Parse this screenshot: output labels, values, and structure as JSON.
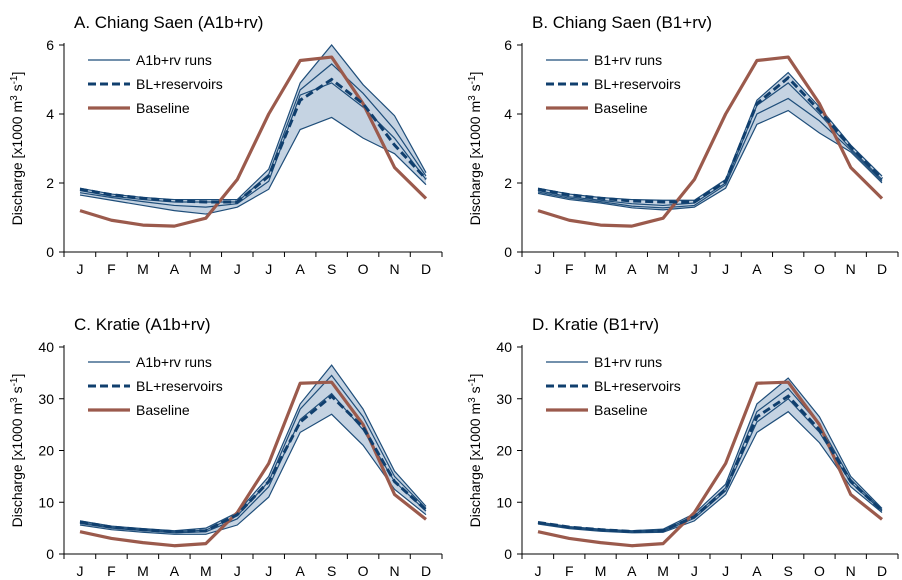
{
  "colors": {
    "baseline": "#9b5a4c",
    "runs": "#1f4e7a",
    "reservoirs": "#103f6e",
    "band": "#c5d3e2"
  },
  "chart_data": [
    {
      "type": "line",
      "title": "A. Chiang Saen (A1b+rv)",
      "ylabel_prefix": "Discharge [x1000 m",
      "ylabel_sup1": "3",
      "ylabel_mid": " s",
      "ylabel_sup2": "-1",
      "ylabel_suffix": "]",
      "categories": [
        "J",
        "F",
        "M",
        "A",
        "M",
        "J",
        "J",
        "A",
        "S",
        "O",
        "N",
        "D"
      ],
      "ylim": [
        0,
        6
      ],
      "yticks": [
        0,
        2,
        4,
        6
      ],
      "legend": {
        "runs": "A1b+rv runs",
        "reservoirs": "BL+reservoirs",
        "baseline": "Baseline"
      },
      "band": {
        "upper": [
          1.85,
          1.68,
          1.58,
          1.52,
          1.52,
          1.52,
          2.4,
          4.9,
          6.0,
          4.85,
          3.95,
          2.3
        ],
        "lower": [
          1.65,
          1.5,
          1.35,
          1.2,
          1.1,
          1.3,
          1.82,
          3.55,
          3.9,
          3.3,
          2.85,
          1.95
        ]
      },
      "runs": [
        [
          1.85,
          1.68,
          1.58,
          1.52,
          1.52,
          1.52,
          2.4,
          4.9,
          6.0,
          4.85,
          3.95,
          2.3
        ],
        [
          1.78,
          1.62,
          1.52,
          1.45,
          1.45,
          1.45,
          2.25,
          4.7,
          5.45,
          4.6,
          3.55,
          2.2
        ],
        [
          1.72,
          1.58,
          1.46,
          1.35,
          1.3,
          1.4,
          2.05,
          4.55,
          4.9,
          4.2,
          3.3,
          2.1
        ],
        [
          1.65,
          1.5,
          1.35,
          1.2,
          1.1,
          1.3,
          1.82,
          3.55,
          3.9,
          3.3,
          2.85,
          1.95
        ]
      ],
      "reservoirs": [
        1.82,
        1.66,
        1.56,
        1.48,
        1.45,
        1.45,
        2.2,
        4.4,
        5.0,
        4.3,
        3.1,
        2.12
      ],
      "baseline": [
        1.2,
        0.92,
        0.78,
        0.75,
        0.98,
        2.1,
        4.0,
        5.55,
        5.65,
        4.3,
        2.45,
        1.55
      ]
    },
    {
      "type": "line",
      "title": "B. Chiang Saen (B1+rv)",
      "ylabel_prefix": "Discharge [x1000 m",
      "ylabel_sup1": "3",
      "ylabel_mid": " s",
      "ylabel_sup2": "-1",
      "ylabel_suffix": "]",
      "categories": [
        "J",
        "F",
        "M",
        "A",
        "M",
        "J",
        "J",
        "A",
        "S",
        "O",
        "N",
        "D"
      ],
      "ylim": [
        0,
        6
      ],
      "yticks": [
        0,
        2,
        4,
        6
      ],
      "legend": {
        "runs": "B1+rv runs",
        "reservoirs": "BL+reservoirs",
        "baseline": "Baseline"
      },
      "band": {
        "upper": [
          1.85,
          1.68,
          1.58,
          1.52,
          1.5,
          1.5,
          2.1,
          4.4,
          5.2,
          4.2,
          3.1,
          2.2
        ],
        "lower": [
          1.7,
          1.52,
          1.42,
          1.28,
          1.22,
          1.3,
          1.85,
          3.7,
          4.1,
          3.45,
          2.9,
          2.0
        ]
      },
      "runs": [
        [
          1.85,
          1.68,
          1.58,
          1.52,
          1.5,
          1.5,
          2.1,
          4.4,
          5.2,
          4.2,
          3.1,
          2.2
        ],
        [
          1.78,
          1.6,
          1.5,
          1.4,
          1.35,
          1.42,
          2.0,
          4.25,
          4.9,
          4.0,
          3.0,
          2.1
        ],
        [
          1.74,
          1.56,
          1.46,
          1.33,
          1.28,
          1.35,
          1.95,
          4.0,
          4.45,
          3.8,
          2.95,
          2.05
        ],
        [
          1.7,
          1.52,
          1.42,
          1.28,
          1.22,
          1.3,
          1.85,
          3.7,
          4.1,
          3.45,
          2.9,
          2.0
        ]
      ],
      "reservoirs": [
        1.82,
        1.66,
        1.56,
        1.48,
        1.45,
        1.45,
        2.05,
        4.3,
        5.05,
        4.1,
        3.05,
        2.12
      ],
      "baseline": [
        1.2,
        0.92,
        0.78,
        0.75,
        0.98,
        2.1,
        4.0,
        5.55,
        5.65,
        4.3,
        2.45,
        1.55
      ]
    },
    {
      "type": "line",
      "title": "C. Kratie (A1b+rv)",
      "ylabel_prefix": "Discharge [x1000 m",
      "ylabel_sup1": "3",
      "ylabel_mid": " s",
      "ylabel_sup2": "-1",
      "ylabel_suffix": "]",
      "categories": [
        "J",
        "F",
        "M",
        "A",
        "M",
        "J",
        "J",
        "A",
        "S",
        "O",
        "N",
        "D"
      ],
      "ylim": [
        0,
        40
      ],
      "yticks": [
        0,
        10,
        20,
        30,
        40
      ],
      "legend": {
        "runs": "A1b+rv runs",
        "reservoirs": "BL+reservoirs",
        "baseline": "Baseline"
      },
      "band": {
        "upper": [
          6.4,
          5.4,
          4.9,
          4.5,
          5.0,
          8.0,
          15.0,
          29.0,
          36.5,
          28.0,
          16.0,
          9.2
        ],
        "lower": [
          5.6,
          4.7,
          4.2,
          3.8,
          3.8,
          5.6,
          11.0,
          23.5,
          27.0,
          21.0,
          12.5,
          7.6
        ]
      },
      "runs": [
        [
          6.4,
          5.4,
          4.9,
          4.5,
          5.0,
          8.0,
          15.0,
          29.0,
          36.5,
          28.0,
          16.0,
          9.2
        ],
        [
          6.1,
          5.2,
          4.7,
          4.3,
          4.6,
          7.4,
          14.0,
          28.0,
          34.5,
          26.5,
          15.0,
          8.8
        ],
        [
          5.9,
          5.0,
          4.5,
          4.1,
          4.3,
          6.8,
          13.0,
          26.0,
          31.0,
          24.0,
          14.0,
          8.3
        ],
        [
          5.6,
          4.7,
          4.2,
          3.8,
          3.8,
          5.6,
          11.0,
          23.5,
          27.0,
          21.0,
          12.5,
          7.6
        ]
      ],
      "reservoirs": [
        6.2,
        5.2,
        4.7,
        4.3,
        4.5,
        7.6,
        14.0,
        25.5,
        30.5,
        24.5,
        14.0,
        8.5
      ],
      "baseline": [
        4.3,
        3.0,
        2.2,
        1.6,
        2.0,
        8.0,
        17.5,
        33.0,
        33.2,
        25.0,
        11.5,
        6.7
      ]
    },
    {
      "type": "line",
      "title": "D. Kratie (B1+rv)",
      "ylabel_prefix": "Discharge [x1000 m",
      "ylabel_sup1": "3",
      "ylabel_mid": " s",
      "ylabel_sup2": "-1",
      "ylabel_suffix": "]",
      "categories": [
        "J",
        "F",
        "M",
        "A",
        "M",
        "J",
        "J",
        "A",
        "S",
        "O",
        "N",
        "D"
      ],
      "ylim": [
        0,
        40
      ],
      "yticks": [
        0,
        10,
        20,
        30,
        40
      ],
      "legend": {
        "runs": "B1+rv runs",
        "reservoirs": "BL+reservoirs",
        "baseline": "Baseline"
      },
      "band": {
        "upper": [
          6.2,
          5.3,
          4.8,
          4.5,
          4.8,
          7.8,
          13.5,
          29.0,
          34.0,
          26.5,
          15.0,
          8.8
        ],
        "lower": [
          5.8,
          4.9,
          4.4,
          4.1,
          4.2,
          6.4,
          11.5,
          23.5,
          27.5,
          21.5,
          13.0,
          8.0
        ]
      },
      "runs": [
        [
          6.2,
          5.3,
          4.8,
          4.5,
          4.8,
          7.8,
          13.5,
          29.0,
          34.0,
          26.5,
          15.0,
          8.8
        ],
        [
          6.05,
          5.15,
          4.65,
          4.35,
          4.6,
          7.3,
          12.8,
          27.5,
          32.0,
          25.0,
          14.4,
          8.5
        ],
        [
          5.95,
          5.05,
          4.55,
          4.25,
          4.4,
          6.9,
          12.2,
          25.5,
          30.0,
          23.5,
          13.8,
          8.3
        ],
        [
          5.8,
          4.9,
          4.4,
          4.1,
          4.2,
          6.4,
          11.5,
          23.5,
          27.5,
          21.5,
          13.0,
          8.0
        ]
      ],
      "reservoirs": [
        6.1,
        5.2,
        4.7,
        4.35,
        4.5,
        7.2,
        12.5,
        26.5,
        30.5,
        24.0,
        14.0,
        8.4
      ],
      "baseline": [
        4.3,
        3.0,
        2.2,
        1.6,
        2.0,
        8.0,
        17.5,
        33.0,
        33.2,
        25.0,
        11.5,
        6.7
      ]
    }
  ]
}
